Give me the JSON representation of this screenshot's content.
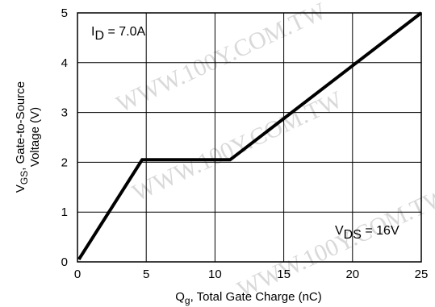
{
  "chart_data": {
    "type": "line",
    "x": [
      0.1,
      4.7,
      11.1,
      25.0
    ],
    "y": [
      0.05,
      2.05,
      2.05,
      5.0
    ],
    "xlim": [
      0,
      25
    ],
    "ylim": [
      0,
      5
    ],
    "xticks": [
      "0",
      "5",
      "10",
      "15",
      "20",
      "25"
    ],
    "yticks": [
      "0",
      "1",
      "2",
      "3",
      "4",
      "5"
    ],
    "grid": true,
    "xlabel": {
      "main": "Q",
      "sub": "g",
      "rest": ", Total Gate Charge (nC)"
    },
    "ylabel": {
      "line1_main": "V",
      "line1_sub": "GS",
      "line1_rest": ", Gate-to-Source",
      "line2": "Voltage (V)"
    },
    "annotations": {
      "id": {
        "main": "I",
        "sub": "D",
        "rest": " = 7.0A"
      },
      "vds": {
        "main": "V",
        "sub": "DS",
        "rest": " = 16V"
      }
    },
    "watermark": "WWW.100Y.COM.TW",
    "colors": {
      "line": "#000000",
      "grid": "#000000",
      "watermark": "#d9d9d9"
    }
  }
}
